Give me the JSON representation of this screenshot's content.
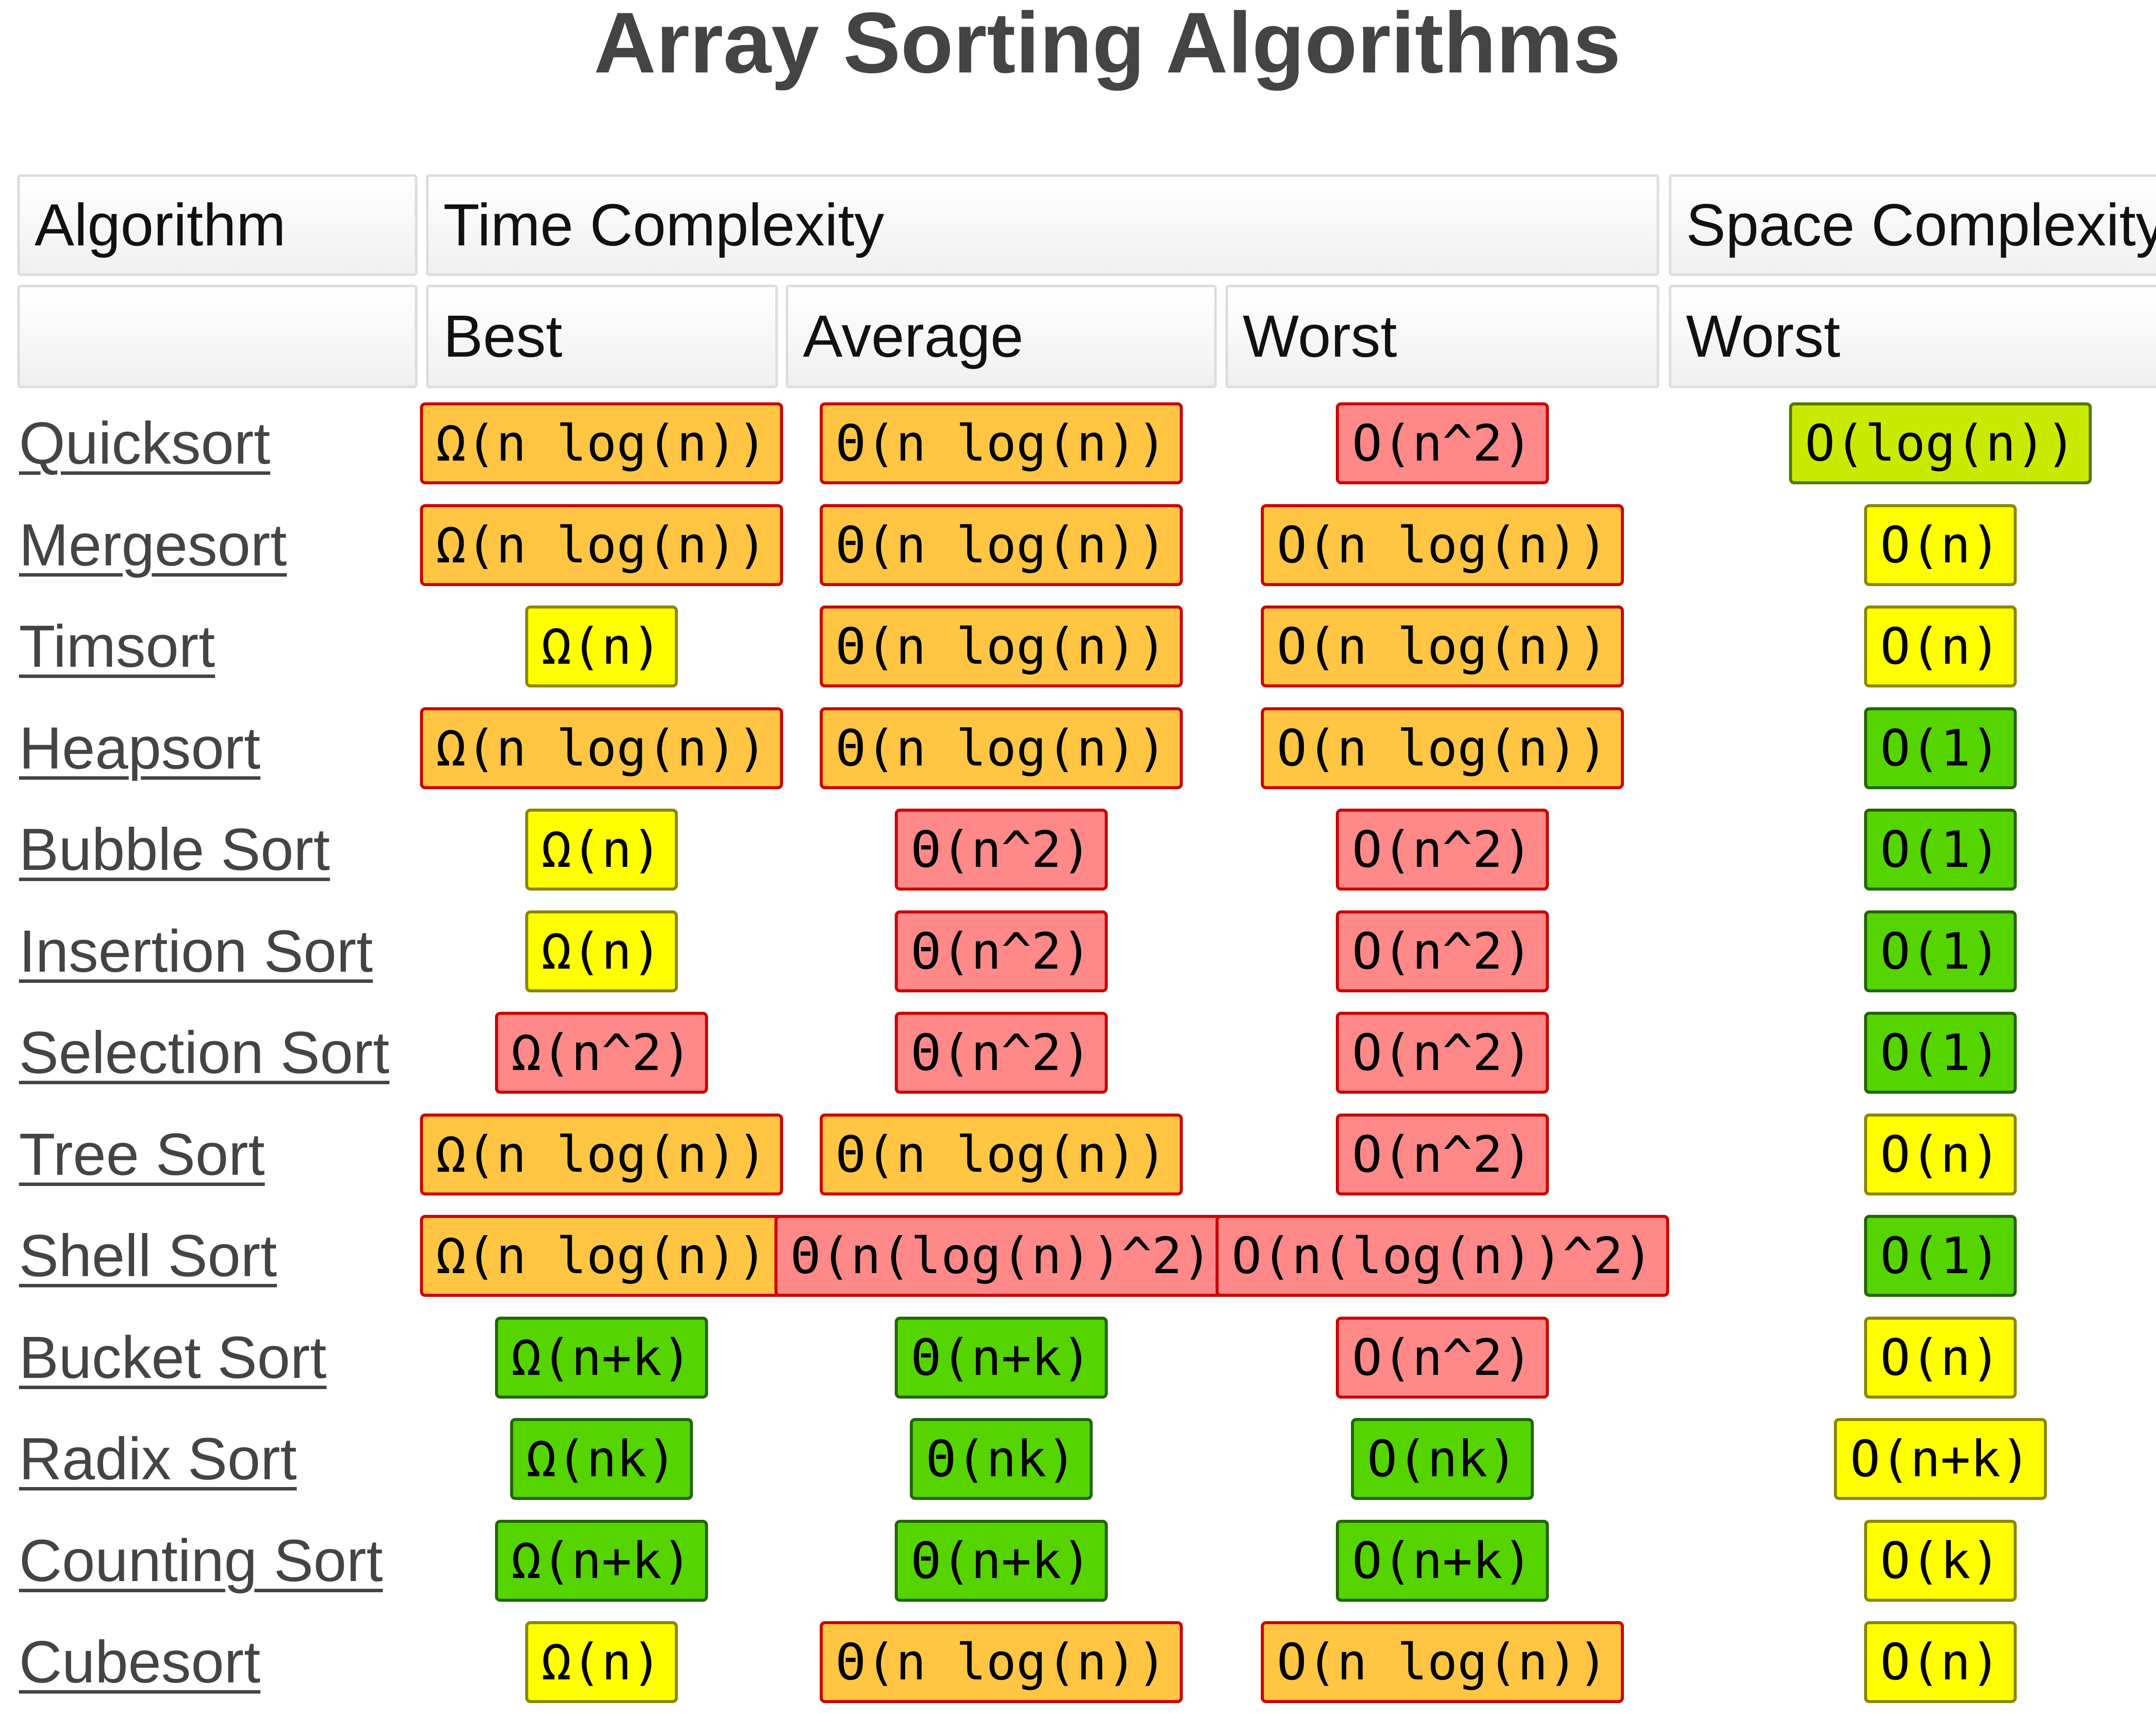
{
  "title": "Array Sorting Algorithms",
  "headers": {
    "algorithm": "Algorithm",
    "time_complexity": "Time Complexity",
    "space_complexity": "Space Complexity",
    "best": "Best",
    "average": "Average",
    "worst": "Worst",
    "space_worst": "Worst"
  },
  "colors": {
    "orange": "#ffc543",
    "red": "#ff8888",
    "yellow": "#ffff00",
    "green": "#55d400",
    "lime": "#c8ea00",
    "badge_border_warm": "#cc0000",
    "badge_border_green": "#226600",
    "header_border": "#dddddd",
    "link_text": "#444444"
  },
  "rows": [
    {
      "name": "Quicksort",
      "best": {
        "text": "Ω(n log(n))",
        "color": "orange"
      },
      "average": {
        "text": "Θ(n log(n))",
        "color": "orange"
      },
      "worst": {
        "text": "O(n^2)",
        "color": "red"
      },
      "space": {
        "text": "O(log(n))",
        "color": "lime"
      }
    },
    {
      "name": "Mergesort",
      "best": {
        "text": "Ω(n log(n))",
        "color": "orange"
      },
      "average": {
        "text": "Θ(n log(n))",
        "color": "orange"
      },
      "worst": {
        "text": "O(n log(n))",
        "color": "orange"
      },
      "space": {
        "text": "O(n)",
        "color": "yellow"
      }
    },
    {
      "name": "Timsort",
      "best": {
        "text": "Ω(n)",
        "color": "yellow"
      },
      "average": {
        "text": "Θ(n log(n))",
        "color": "orange"
      },
      "worst": {
        "text": "O(n log(n))",
        "color": "orange"
      },
      "space": {
        "text": "O(n)",
        "color": "yellow"
      }
    },
    {
      "name": "Heapsort",
      "best": {
        "text": "Ω(n log(n))",
        "color": "orange"
      },
      "average": {
        "text": "Θ(n log(n))",
        "color": "orange"
      },
      "worst": {
        "text": "O(n log(n))",
        "color": "orange"
      },
      "space": {
        "text": "O(1)",
        "color": "green"
      }
    },
    {
      "name": "Bubble Sort",
      "best": {
        "text": "Ω(n)",
        "color": "yellow"
      },
      "average": {
        "text": "Θ(n^2)",
        "color": "red"
      },
      "worst": {
        "text": "O(n^2)",
        "color": "red"
      },
      "space": {
        "text": "O(1)",
        "color": "green"
      }
    },
    {
      "name": "Insertion Sort",
      "best": {
        "text": "Ω(n)",
        "color": "yellow"
      },
      "average": {
        "text": "Θ(n^2)",
        "color": "red"
      },
      "worst": {
        "text": "O(n^2)",
        "color": "red"
      },
      "space": {
        "text": "O(1)",
        "color": "green"
      }
    },
    {
      "name": "Selection Sort",
      "best": {
        "text": "Ω(n^2)",
        "color": "red"
      },
      "average": {
        "text": "Θ(n^2)",
        "color": "red"
      },
      "worst": {
        "text": "O(n^2)",
        "color": "red"
      },
      "space": {
        "text": "O(1)",
        "color": "green"
      }
    },
    {
      "name": "Tree Sort",
      "best": {
        "text": "Ω(n log(n))",
        "color": "orange"
      },
      "average": {
        "text": "Θ(n log(n))",
        "color": "orange"
      },
      "worst": {
        "text": "O(n^2)",
        "color": "red"
      },
      "space": {
        "text": "O(n)",
        "color": "yellow"
      }
    },
    {
      "name": "Shell Sort",
      "best": {
        "text": "Ω(n log(n))",
        "color": "orange"
      },
      "average": {
        "text": "Θ(n(log(n))^2)",
        "color": "red"
      },
      "worst": {
        "text": "O(n(log(n))^2)",
        "color": "red"
      },
      "space": {
        "text": "O(1)",
        "color": "green"
      }
    },
    {
      "name": "Bucket Sort",
      "best": {
        "text": "Ω(n+k)",
        "color": "green"
      },
      "average": {
        "text": "Θ(n+k)",
        "color": "green"
      },
      "worst": {
        "text": "O(n^2)",
        "color": "red"
      },
      "space": {
        "text": "O(n)",
        "color": "yellow"
      }
    },
    {
      "name": "Radix Sort",
      "best": {
        "text": "Ω(nk)",
        "color": "green"
      },
      "average": {
        "text": "Θ(nk)",
        "color": "green"
      },
      "worst": {
        "text": "O(nk)",
        "color": "green"
      },
      "space": {
        "text": "O(n+k)",
        "color": "yellow"
      }
    },
    {
      "name": "Counting Sort",
      "best": {
        "text": "Ω(n+k)",
        "color": "green"
      },
      "average": {
        "text": "Θ(n+k)",
        "color": "green"
      },
      "worst": {
        "text": "O(n+k)",
        "color": "green"
      },
      "space": {
        "text": "O(k)",
        "color": "yellow"
      }
    },
    {
      "name": "Cubesort",
      "best": {
        "text": "Ω(n)",
        "color": "yellow"
      },
      "average": {
        "text": "Θ(n log(n))",
        "color": "orange"
      },
      "worst": {
        "text": "O(n log(n))",
        "color": "orange"
      },
      "space": {
        "text": "O(n)",
        "color": "yellow"
      }
    }
  ]
}
